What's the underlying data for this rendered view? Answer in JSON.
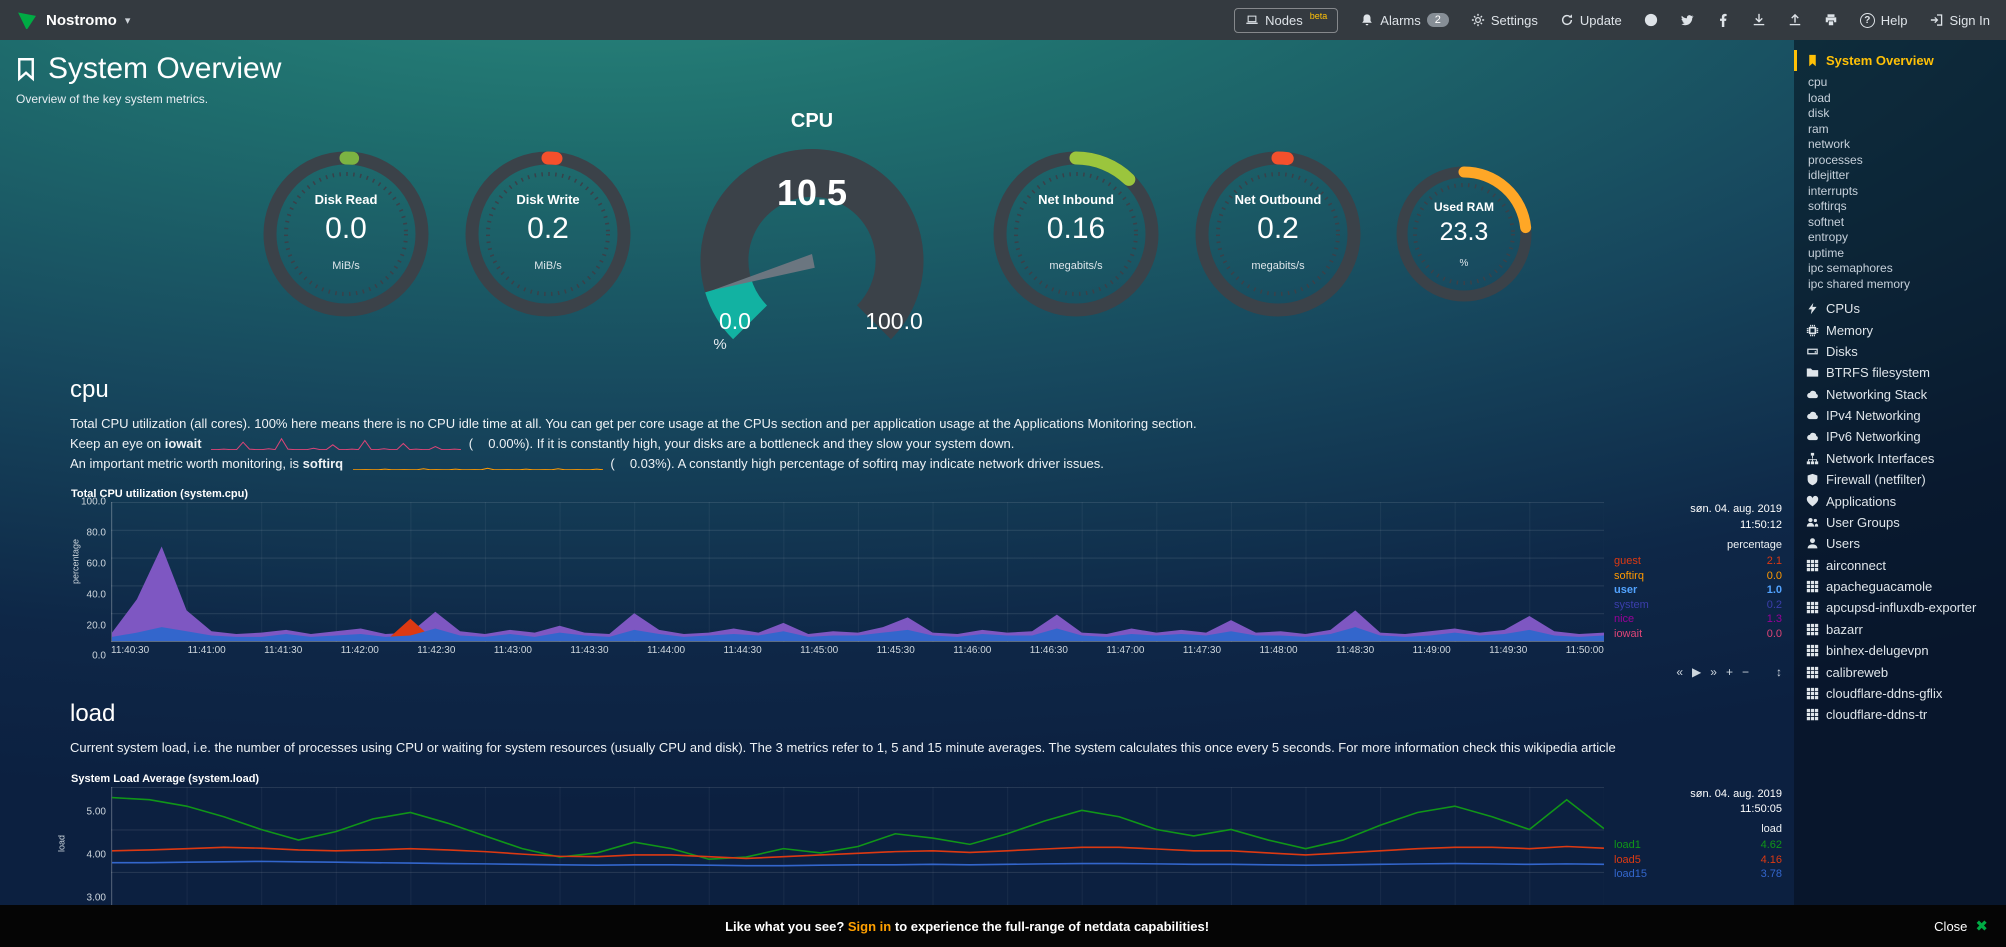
{
  "topbar": {
    "brand": "Nostromo",
    "nodes": "Nodes",
    "nodes_beta": "beta",
    "alarms": "Alarms",
    "alarms_count": "2",
    "settings": "Settings",
    "update": "Update",
    "help": "Help",
    "signin": "Sign In"
  },
  "header": {
    "title": "System Overview",
    "subtitle": "Overview of the key system metrics."
  },
  "gauges": {
    "disk_read": {
      "title": "Disk Read",
      "value": "0.0",
      "unit": "MiB/s",
      "color": "#7cb342",
      "arc_deg": 5
    },
    "disk_write": {
      "title": "Disk Write",
      "value": "0.2",
      "unit": "MiB/s",
      "color": "#f4502c",
      "arc_deg": 6
    },
    "cpu": {
      "title": "CPU",
      "value": "10.5",
      "min": "0.0",
      "max": "100.0",
      "unit": "%",
      "color": "#12b2a2"
    },
    "net_inbound": {
      "title": "Net Inbound",
      "value": "0.16",
      "unit": "megabits/s",
      "color": "#9bc53d",
      "arc_deg": 44
    },
    "net_outbound": {
      "title": "Net Outbound",
      "value": "0.2",
      "unit": "megabits/s",
      "color": "#f4502c",
      "arc_deg": 7
    },
    "used_ram": {
      "title": "Used RAM",
      "value": "23.3",
      "unit": "%",
      "color": "#ffa726",
      "arc_deg": 84
    }
  },
  "cpu_section": {
    "heading": "cpu",
    "desc1": "Total CPU utilization (all cores). 100% here means there is no CPU idle time at all. You can get per core usage at the CPUs section and per application usage at the Applications Monitoring section.",
    "line2_pre": "Keep an eye on",
    "line2_term": "iowait",
    "line2_open": "(",
    "line2_value": "0.00%",
    "line2_close": ").",
    "line2_post": "If it is constantly high, your disks are a bottleneck and they slow your system down.",
    "line3_pre": "An important metric worth monitoring, is",
    "line3_term": "softirq",
    "line3_open": "(",
    "line3_value": "0.03%",
    "line3_close": ").",
    "line3_post": "A constantly high percentage of softirq may indicate network driver issues.",
    "legend": [
      {
        "name": "guest",
        "value": "2.1",
        "color": "#DC3912"
      },
      {
        "name": "softirq",
        "value": "0.0",
        "color": "#FF9900"
      },
      {
        "name": "user",
        "value": "1.0",
        "color": "#3366CC",
        "highlight": "true"
      },
      {
        "name": "system",
        "value": "0.2",
        "color": "#3B3EAC"
      },
      {
        "name": "nice",
        "value": "1.3",
        "color": "#990099"
      },
      {
        "name": "iowait",
        "value": "0.0",
        "color": "#DD4477"
      }
    ]
  },
  "load_section": {
    "heading": "load",
    "desc": "Current system load, i.e. the number of processes using CPU or waiting for system resources (usually CPU and disk). The 3 metrics refer to 1, 5 and 15 minute averages. The system calculates this once every 5 seconds. For more information check this wikipedia article",
    "legend": [
      {
        "name": "load1",
        "value": "4.62",
        "color": "#109618"
      },
      {
        "name": "load5",
        "value": "4.16",
        "color": "#DC3912"
      },
      {
        "name": "load15",
        "value": "3.78",
        "color": "#3366CC"
      }
    ]
  },
  "chart_data": {
    "cpu": {
      "type": "area",
      "title": "Total CPU utilization (system.cpu)",
      "date": "søn. 04. aug. 2019",
      "time": "11:50:12",
      "legend_header": "percentage",
      "ylabel": "percentage",
      "ylim": [
        0,
        100
      ],
      "yticks": [
        "100.0",
        "80.0",
        "60.0",
        "40.0",
        "20.0",
        "0.0"
      ],
      "x_labels": [
        "11:40:30",
        "11:41:00",
        "11:41:30",
        "11:42:00",
        "11:42:30",
        "11:43:00",
        "11:43:30",
        "11:44:00",
        "11:44:30",
        "11:45:00",
        "11:45:30",
        "11:46:00",
        "11:46:30",
        "11:47:00",
        "11:47:30",
        "11:48:00",
        "11:48:30",
        "11:49:00",
        "11:49:30",
        "11:50:00"
      ],
      "toolbox": [
        "«",
        "▶",
        "»",
        "+",
        "−",
        "↕"
      ],
      "series": [
        {
          "name": "nice+system+user stacked",
          "color": "#7e57c2",
          "fill": true,
          "values": [
            6,
            30,
            68,
            22,
            7,
            5,
            6,
            8,
            5,
            7,
            9,
            5,
            6,
            21,
            7,
            5,
            8,
            6,
            11,
            6,
            5,
            20,
            8,
            5,
            6,
            9,
            6,
            13,
            5,
            7,
            6,
            10,
            17,
            6,
            5,
            8,
            6,
            7,
            19,
            6,
            5,
            9,
            6,
            8,
            6,
            15,
            6,
            7,
            5,
            8,
            22,
            6,
            5,
            7,
            9,
            6,
            8,
            18,
            7,
            5,
            6
          ]
        },
        {
          "name": "guest",
          "color": "#DC3912",
          "fill": true,
          "values": [
            0,
            0,
            0,
            0,
            0,
            0,
            0,
            0,
            0,
            0,
            0,
            0,
            16,
            0,
            0,
            0,
            0,
            0,
            0,
            0,
            0,
            0,
            0,
            0,
            0,
            0,
            0,
            0,
            0,
            0,
            0,
            0,
            0,
            0,
            0,
            0,
            0,
            0,
            7,
            0,
            0,
            0,
            0,
            0,
            0,
            0,
            0,
            0,
            0,
            0,
            9,
            0,
            0,
            0,
            0,
            0,
            0,
            0,
            0,
            0,
            0
          ]
        },
        {
          "name": "user",
          "color": "#3366CC",
          "fill": true,
          "values": [
            3,
            6,
            10,
            7,
            4,
            3,
            3,
            5,
            3,
            4,
            5,
            3,
            4,
            9,
            4,
            3,
            5,
            3,
            6,
            4,
            3,
            8,
            5,
            3,
            4,
            5,
            4,
            7,
            3,
            4,
            4,
            6,
            8,
            4,
            3,
            5,
            4,
            4,
            9,
            4,
            3,
            5,
            4,
            5,
            4,
            7,
            4,
            4,
            3,
            5,
            10,
            4,
            3,
            4,
            6,
            4,
            5,
            8,
            4,
            3,
            4
          ]
        }
      ]
    },
    "load": {
      "type": "line",
      "title": "System Load Average (system.load)",
      "date": "søn. 04. aug. 2019",
      "time": "11:50:05",
      "legend_header": "load",
      "ylabel": "load",
      "ylim": [
        2.8,
        5.6
      ],
      "yticks": [
        "5.00",
        "4.00",
        "3.00"
      ],
      "series": [
        {
          "name": "load1",
          "color": "#109618",
          "width": 1.6,
          "values": [
            5.35,
            5.3,
            5.15,
            4.9,
            4.6,
            4.35,
            4.55,
            4.85,
            5.0,
            4.75,
            4.45,
            4.15,
            3.95,
            4.05,
            4.3,
            4.15,
            3.9,
            3.95,
            4.15,
            4.05,
            4.2,
            4.5,
            4.4,
            4.25,
            4.5,
            4.8,
            5.05,
            4.9,
            4.6,
            4.45,
            4.6,
            4.35,
            4.15,
            4.35,
            4.7,
            5.0,
            5.15,
            4.9,
            4.6,
            5.3,
            4.62
          ]
        },
        {
          "name": "load5",
          "color": "#DC3912",
          "width": 1.6,
          "values": [
            4.1,
            4.12,
            4.15,
            4.18,
            4.16,
            4.12,
            4.1,
            4.12,
            4.15,
            4.12,
            4.08,
            4.02,
            3.97,
            3.96,
            4.0,
            4.0,
            3.96,
            3.92,
            3.96,
            4.0,
            4.04,
            4.08,
            4.1,
            4.06,
            4.1,
            4.14,
            4.18,
            4.18,
            4.14,
            4.1,
            4.1,
            4.05,
            4.0,
            4.05,
            4.1,
            4.15,
            4.18,
            4.18,
            4.15,
            4.2,
            4.16
          ]
        },
        {
          "name": "load15",
          "color": "#3366CC",
          "width": 1.6,
          "values": [
            3.82,
            3.82,
            3.83,
            3.84,
            3.85,
            3.84,
            3.83,
            3.82,
            3.81,
            3.8,
            3.79,
            3.78,
            3.77,
            3.76,
            3.77,
            3.77,
            3.76,
            3.75,
            3.75,
            3.76,
            3.77,
            3.77,
            3.78,
            3.77,
            3.78,
            3.79,
            3.8,
            3.8,
            3.79,
            3.78,
            3.78,
            3.77,
            3.76,
            3.77,
            3.78,
            3.79,
            3.8,
            3.79,
            3.78,
            3.79,
            3.78
          ]
        }
      ]
    },
    "iowait_spark": {
      "type": "line",
      "ylim": [
        0,
        3
      ],
      "series": [
        {
          "name": "iowait",
          "color": "#DD4477",
          "width": 1,
          "values": [
            0.1,
            0.1,
            0.2,
            0.1,
            0.1,
            1.8,
            0.2,
            0.1,
            0.1,
            0.3,
            0.1,
            2.6,
            0.2,
            0.1,
            0.1,
            0.1,
            0.4,
            0.1,
            0.1,
            1.2,
            0.1,
            0.1,
            0.2,
            0.1,
            2.2,
            0.1,
            0.1,
            0.3,
            0.1,
            0.1,
            1.5,
            0.1,
            0.2,
            0.1,
            0.1,
            0.8,
            0.1,
            0.1,
            0.2,
            0.1
          ]
        }
      ]
    },
    "softirq_spark": {
      "type": "line",
      "ylim": [
        0,
        3
      ],
      "series": [
        {
          "name": "softirq",
          "color": "#FF9900",
          "width": 1,
          "values": [
            0.05,
            0.05,
            0.1,
            0.05,
            0.05,
            0.2,
            0.05,
            0.05,
            0.1,
            0.05,
            0.05,
            0.3,
            0.05,
            0.1,
            0.05,
            0.05,
            0.2,
            0.05,
            0.05,
            0.1,
            0.05,
            0.4,
            0.05,
            0.05,
            0.1,
            0.05,
            0.05,
            0.2,
            0.05,
            0.05,
            0.1,
            0.05,
            0.3,
            0.05,
            0.05,
            0.1,
            0.05,
            0.05,
            0.2,
            0.05
          ]
        }
      ]
    }
  },
  "sidebar": {
    "active": "System Overview",
    "sub_items": [
      "cpu",
      "load",
      "disk",
      "ram",
      "network",
      "processes",
      "idlejitter",
      "interrupts",
      "softirqs",
      "softnet",
      "entropy",
      "uptime",
      "ipc semaphores",
      "ipc shared memory"
    ],
    "sections": [
      {
        "label": "CPUs",
        "icon": "#i-bolt"
      },
      {
        "label": "Memory",
        "icon": "#i-chip"
      },
      {
        "label": "Disks",
        "icon": "#i-disk"
      },
      {
        "label": "BTRFS filesystem",
        "icon": "#i-folder"
      },
      {
        "label": "Networking Stack",
        "icon": "#i-cloud"
      },
      {
        "label": "IPv4 Networking",
        "icon": "#i-cloud"
      },
      {
        "label": "IPv6 Networking",
        "icon": "#i-cloud"
      },
      {
        "label": "Network Interfaces",
        "icon": "#i-sitemap"
      },
      {
        "label": "Firewall (netfilter)",
        "icon": "#i-shield"
      },
      {
        "label": "Applications",
        "icon": "#i-heart"
      },
      {
        "label": "User Groups",
        "icon": "#i-users"
      },
      {
        "label": "Users",
        "icon": "#i-user"
      },
      {
        "label": "airconnect",
        "icon": "#i-grid"
      },
      {
        "label": "apacheguacamole",
        "icon": "#i-grid"
      },
      {
        "label": "apcupsd-influxdb-exporter",
        "icon": "#i-grid"
      },
      {
        "label": "bazarr",
        "icon": "#i-grid"
      },
      {
        "label": "binhex-delugevpn",
        "icon": "#i-grid"
      },
      {
        "label": "calibreweb",
        "icon": "#i-grid"
      },
      {
        "label": "cloudflare-ddns-gflix",
        "icon": "#i-grid"
      },
      {
        "label": "cloudflare-ddns-tr",
        "icon": "#i-grid"
      }
    ]
  },
  "footer": {
    "pre": "Like what you see?",
    "signin": "Sign in",
    "post": "to experience the full-range of netdata capabilities!",
    "close": "Close",
    "close_icon": "✖"
  }
}
